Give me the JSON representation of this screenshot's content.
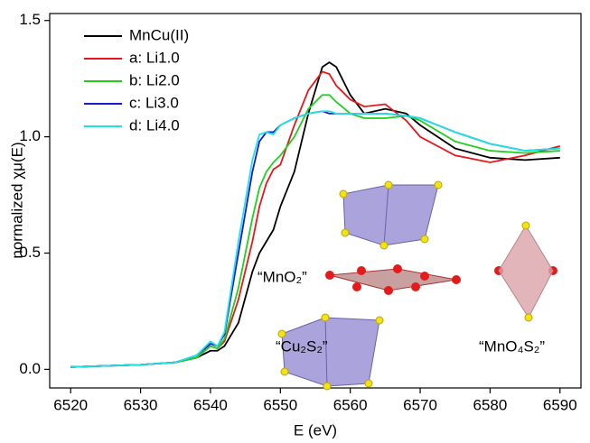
{
  "chart_data": {
    "type": "line",
    "x_label": "E (eV)",
    "y_label": "normalized χμ(E)",
    "annotations": [
      "“MnO₂”",
      "“Cu₂S₂”",
      "“MnO₄S₂”"
    ],
    "x": [
      6520,
      6530,
      6535,
      6538,
      6540,
      6541,
      6542,
      6544,
      6546,
      6547,
      6548,
      6549,
      6550,
      6552,
      6554,
      6556,
      6557,
      6558,
      6560,
      6562,
      6565,
      6568,
      6570,
      6575,
      6580,
      6585,
      6590
    ],
    "series": [
      {
        "name": "MnCu(II)",
        "color": "#000000",
        "values": [
          0.01,
          0.02,
          0.03,
          0.05,
          0.08,
          0.08,
          0.1,
          0.2,
          0.42,
          0.5,
          0.55,
          0.6,
          0.7,
          0.85,
          1.1,
          1.3,
          1.32,
          1.3,
          1.18,
          1.1,
          1.12,
          1.1,
          1.05,
          0.95,
          0.91,
          0.9,
          0.91
        ]
      },
      {
        "name": "a: Li1.0",
        "color": "#e8161b",
        "values": [
          0.01,
          0.02,
          0.03,
          0.05,
          0.1,
          0.09,
          0.12,
          0.3,
          0.55,
          0.7,
          0.8,
          0.86,
          0.88,
          1.05,
          1.2,
          1.28,
          1.27,
          1.22,
          1.16,
          1.13,
          1.14,
          1.07,
          1.0,
          0.92,
          0.89,
          0.92,
          0.96
        ]
      },
      {
        "name": "b: Li2.0",
        "color": "#1fd01f",
        "values": [
          0.01,
          0.02,
          0.03,
          0.05,
          0.1,
          0.09,
          0.13,
          0.35,
          0.65,
          0.78,
          0.85,
          0.89,
          0.92,
          1.0,
          1.12,
          1.18,
          1.18,
          1.15,
          1.1,
          1.08,
          1.08,
          1.09,
          1.07,
          0.98,
          0.94,
          0.93,
          0.94
        ]
      },
      {
        "name": "c: Li3.0",
        "color": "#1a1acc",
        "values": [
          0.01,
          0.02,
          0.03,
          0.06,
          0.11,
          0.1,
          0.15,
          0.5,
          0.85,
          0.98,
          1.02,
          1.02,
          1.05,
          1.08,
          1.1,
          1.11,
          1.1,
          1.1,
          1.1,
          1.1,
          1.1,
          1.09,
          1.08,
          1.02,
          0.97,
          0.94,
          0.95
        ]
      },
      {
        "name": "d: Li4.0",
        "color": "#1ee3e3",
        "values": [
          0.01,
          0.02,
          0.03,
          0.06,
          0.12,
          0.1,
          0.16,
          0.55,
          0.9,
          1.01,
          1.02,
          1.01,
          1.05,
          1.08,
          1.1,
          1.11,
          1.11,
          1.1,
          1.1,
          1.1,
          1.1,
          1.09,
          1.08,
          1.02,
          0.97,
          0.94,
          0.95
        ]
      }
    ],
    "xlim": [
      6517,
      6593
    ],
    "xticks": [
      6520,
      6530,
      6540,
      6550,
      6560,
      6570,
      6580,
      6590
    ],
    "ylim": [
      -0.08,
      1.53
    ],
    "yticks": [
      {
        "value": 0,
        "label": "0.0"
      },
      {
        "value": 0.5,
        "label": "0.5"
      },
      {
        "value": 1,
        "label": "1.0"
      },
      {
        "value": 1.5,
        "label": "1.5"
      }
    ],
    "legend": "upper left"
  }
}
